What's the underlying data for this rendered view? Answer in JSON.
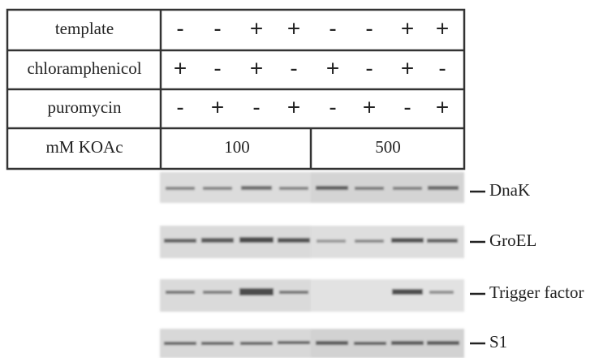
{
  "table": {
    "rows": [
      {
        "label": "template",
        "cells": [
          "-",
          "-",
          "+",
          "+",
          "-",
          "-",
          "+",
          "+"
        ]
      },
      {
        "label": "chloramphenicol",
        "cells": [
          "+",
          "-",
          "+",
          "-",
          "+",
          "-",
          "+",
          "-"
        ]
      },
      {
        "label": "puromycin",
        "cells": [
          "-",
          "+",
          "-",
          "+",
          "-",
          "+",
          "-",
          "+"
        ]
      }
    ],
    "koac": {
      "label": "mM KOAc",
      "cells": [
        "100",
        "500"
      ]
    }
  },
  "blots": [
    {
      "label": "DnaK"
    },
    {
      "label": "GroEL"
    },
    {
      "label": "Trigger factor"
    },
    {
      "label": "S1"
    }
  ]
}
